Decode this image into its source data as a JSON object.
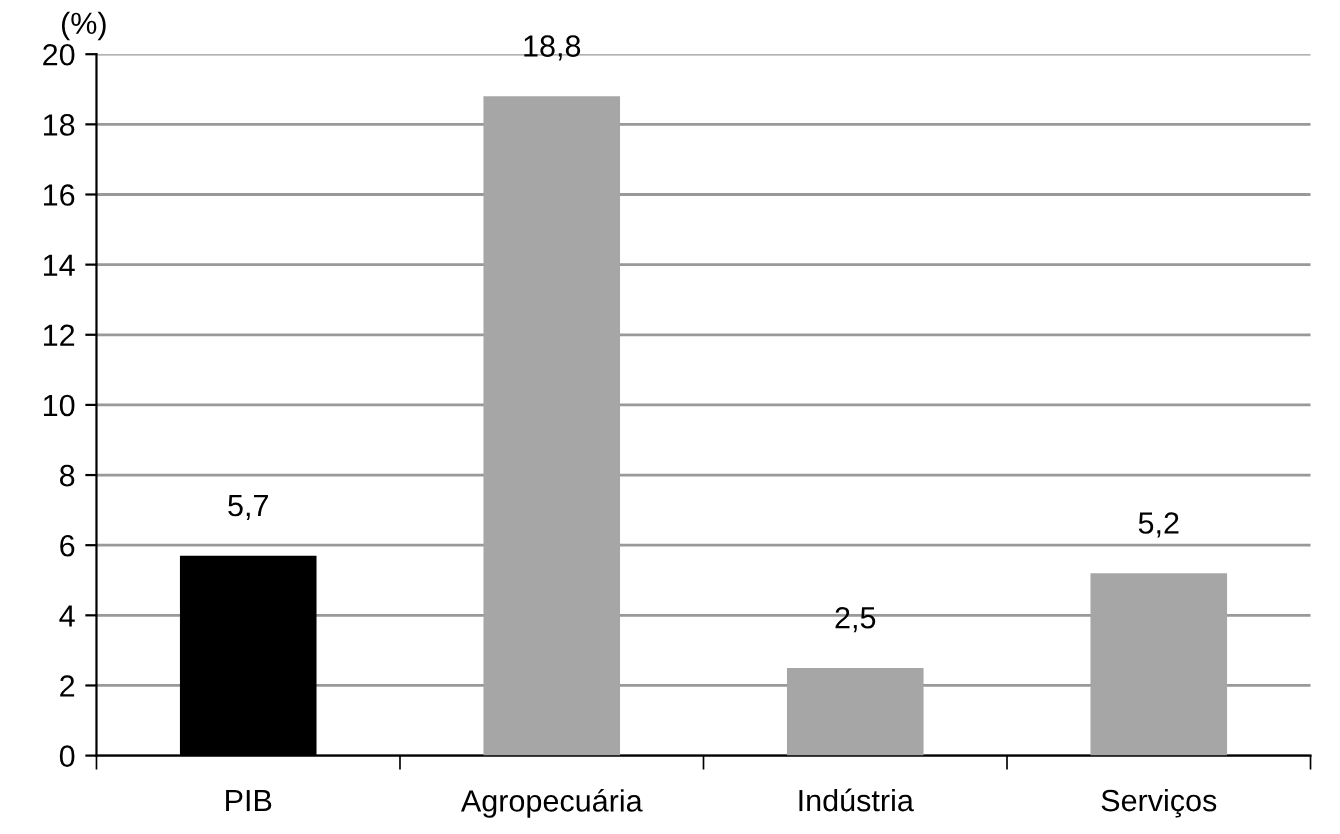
{
  "chart_data": {
    "type": "bar",
    "ylabel": "(%)",
    "categories": [
      "PIB",
      "Agropecuária",
      "Indústria",
      "Serviços"
    ],
    "values": [
      5.7,
      18.8,
      2.5,
      5.2
    ],
    "colors": [
      "#000000",
      "#a6a6a6",
      "#a6a6a6",
      "#a6a6a6"
    ],
    "value_labels": [
      "5,7",
      "18,8",
      "2,5",
      "5,2"
    ],
    "ylim": [
      0,
      20
    ],
    "yticks": [
      0,
      2,
      4,
      6,
      8,
      10,
      12,
      14,
      16,
      18,
      20
    ],
    "grid": "y"
  }
}
